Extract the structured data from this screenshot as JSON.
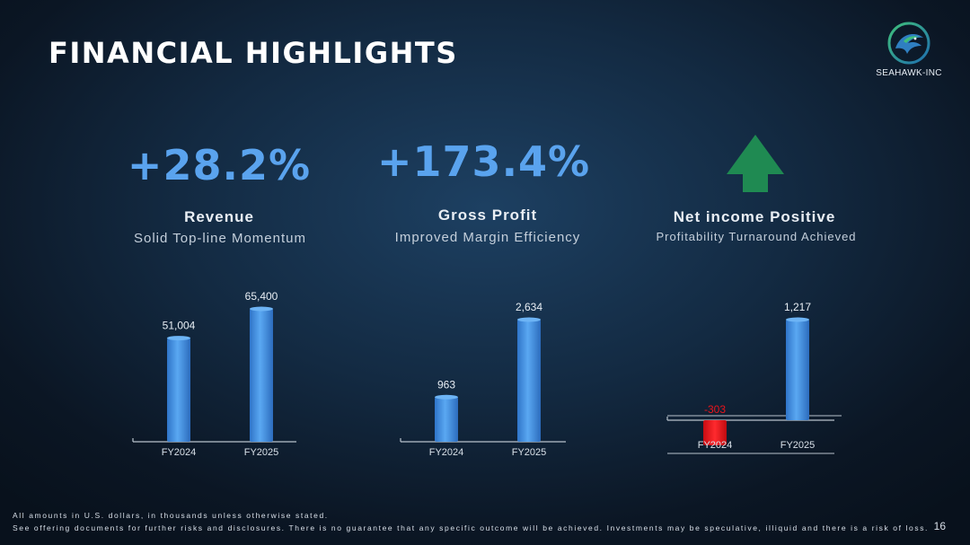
{
  "slide": {
    "title": "FINANCIAL HIGHLIGHTS",
    "page_number": "16"
  },
  "logo": {
    "company": "SEAHAWK-INC",
    "icon": "seahawk-icon"
  },
  "metrics": [
    {
      "value": "+28.2%",
      "label": "Revenue",
      "sub": "Solid Top-line Momentum"
    },
    {
      "value": "+173.4%",
      "label": "Gross Profit",
      "sub": "Improved Margin Efficiency"
    },
    {
      "icon": "up-arrow-icon",
      "label": "Net income Positive",
      "sub": "Profitability Turnaround Achieved"
    }
  ],
  "colors": {
    "accent": "#5aa3ee",
    "bar": "#3f8fe8",
    "negative": "#e8141b",
    "arrow": "#1f8a52"
  },
  "chart_data": [
    {
      "type": "bar",
      "categories": [
        "FY2024",
        "FY2025"
      ],
      "values": [
        51004,
        65400
      ],
      "labels": [
        "51,004",
        "65,400"
      ]
    },
    {
      "type": "bar",
      "categories": [
        "FY2024",
        "FY2025"
      ],
      "values": [
        963,
        2634
      ],
      "labels": [
        "963",
        "2,634"
      ]
    },
    {
      "type": "bar",
      "categories": [
        "FY2024",
        "FY2025"
      ],
      "values": [
        -303,
        1217
      ],
      "labels": [
        "-303",
        "1,217"
      ]
    }
  ],
  "footer": {
    "line1": "All amounts in U.S. dollars, in thousands unless otherwise stated.",
    "line2": "See offering documents for further risks and disclosures. There is no guarantee that any specific outcome will be achieved. Investments may be speculative, illiquid and there is a risk of loss."
  }
}
